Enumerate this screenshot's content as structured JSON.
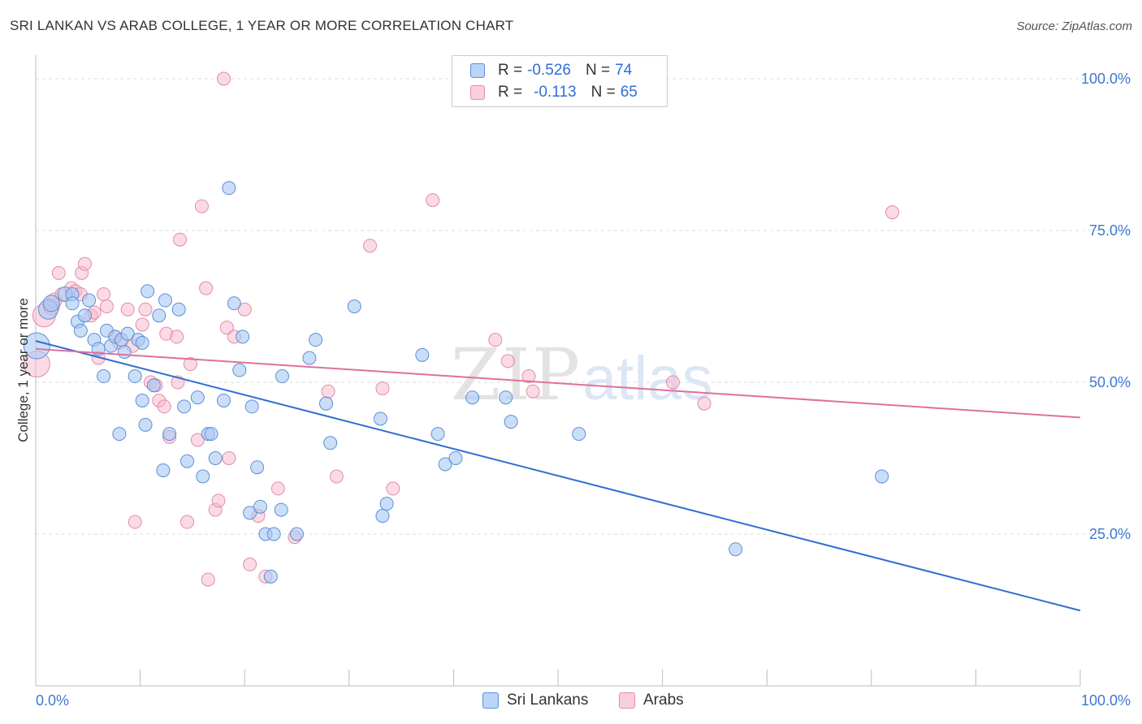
{
  "header": {
    "title": "SRI LANKAN VS ARAB COLLEGE, 1 YEAR OR MORE CORRELATION CHART",
    "source": "Source: ZipAtlas.com"
  },
  "watermark": {
    "zip": "ZIP",
    "atlas": "atlas"
  },
  "legend": {
    "rows": [
      {
        "r_label": "R =",
        "r_value": "-0.526",
        "n_label": "N =",
        "n_value": "74"
      },
      {
        "r_label": "R =",
        "r_value": "-0.113",
        "n_label": "N =",
        "n_value": "65"
      }
    ]
  },
  "bottom_legend": {
    "items": [
      "Sri Lankans",
      "Arabs"
    ]
  },
  "colors": {
    "blue_fill": "#a9c8f2",
    "blue_stroke": "#5b8fd9",
    "blue_line": "#2e6fd1",
    "pink_fill": "#f5b8cb",
    "pink_stroke": "#e58aa8",
    "pink_line": "#e0719a",
    "tick_label": "#3f78d0",
    "grid": "#dddddd"
  },
  "chart_data": {
    "type": "scatter",
    "title": "SRI LANKAN VS ARAB COLLEGE, 1 YEAR OR MORE CORRELATION CHART",
    "xlabel": "",
    "ylabel": "College, 1 year or more",
    "xlim": [
      0,
      100
    ],
    "ylim": [
      0,
      100
    ],
    "x_tick_labels": [
      "0.0%",
      "100.0%"
    ],
    "y_ticks": [
      25,
      50,
      75,
      100
    ],
    "y_tick_labels": [
      "25.0%",
      "50.0%",
      "75.0%",
      "100.0%"
    ],
    "grid": true,
    "series": [
      {
        "name": "Sri Lankans",
        "r": -0.526,
        "n": 74,
        "trend": {
          "x": [
            0,
            100
          ],
          "y": [
            56.8,
            12.4
          ]
        },
        "points": [
          {
            "x": 0.1,
            "y": 56,
            "s": 16
          },
          {
            "x": 1.2,
            "y": 62,
            "s": 12
          },
          {
            "x": 1.5,
            "y": 63,
            "s": 10
          },
          {
            "x": 2.8,
            "y": 64.5,
            "s": 9
          },
          {
            "x": 3.5,
            "y": 64.5,
            "s": 8
          },
          {
            "x": 3.5,
            "y": 63,
            "s": 8
          },
          {
            "x": 4,
            "y": 60,
            "s": 8
          },
          {
            "x": 4.3,
            "y": 58.5,
            "s": 8
          },
          {
            "x": 5.1,
            "y": 63.5,
            "s": 8
          },
          {
            "x": 4.7,
            "y": 61,
            "s": 8
          },
          {
            "x": 5.6,
            "y": 57,
            "s": 8
          },
          {
            "x": 6,
            "y": 55.5,
            "s": 8
          },
          {
            "x": 6.5,
            "y": 51,
            "s": 8
          },
          {
            "x": 6.8,
            "y": 58.5,
            "s": 8
          },
          {
            "x": 7.2,
            "y": 56,
            "s": 8
          },
          {
            "x": 7.6,
            "y": 57.5,
            "s": 8
          },
          {
            "x": 8.2,
            "y": 57,
            "s": 8
          },
          {
            "x": 8.5,
            "y": 55,
            "s": 8
          },
          {
            "x": 8,
            "y": 41.5,
            "s": 8
          },
          {
            "x": 8.8,
            "y": 58,
            "s": 8
          },
          {
            "x": 9.5,
            "y": 51,
            "s": 8
          },
          {
            "x": 9.8,
            "y": 57,
            "s": 8
          },
          {
            "x": 10.2,
            "y": 56.5,
            "s": 8
          },
          {
            "x": 10.2,
            "y": 47,
            "s": 8
          },
          {
            "x": 10.5,
            "y": 43,
            "s": 8
          },
          {
            "x": 10.7,
            "y": 65,
            "s": 8
          },
          {
            "x": 11.3,
            "y": 49.5,
            "s": 8
          },
          {
            "x": 11.8,
            "y": 61,
            "s": 8
          },
          {
            "x": 12.2,
            "y": 35.5,
            "s": 8
          },
          {
            "x": 12.4,
            "y": 63.5,
            "s": 8
          },
          {
            "x": 12.8,
            "y": 41.5,
            "s": 8
          },
          {
            "x": 13.7,
            "y": 62,
            "s": 8
          },
          {
            "x": 14.2,
            "y": 46,
            "s": 8
          },
          {
            "x": 14.5,
            "y": 37,
            "s": 8
          },
          {
            "x": 15.5,
            "y": 47.5,
            "s": 8
          },
          {
            "x": 16,
            "y": 34.5,
            "s": 8
          },
          {
            "x": 16.5,
            "y": 41.5,
            "s": 8
          },
          {
            "x": 16.8,
            "y": 41.5,
            "s": 8
          },
          {
            "x": 17.2,
            "y": 37.5,
            "s": 8
          },
          {
            "x": 18,
            "y": 47,
            "s": 8
          },
          {
            "x": 18.5,
            "y": 82,
            "s": 8
          },
          {
            "x": 19,
            "y": 63,
            "s": 8
          },
          {
            "x": 19.5,
            "y": 52,
            "s": 8
          },
          {
            "x": 19.8,
            "y": 57.5,
            "s": 8
          },
          {
            "x": 20.5,
            "y": 28.5,
            "s": 8
          },
          {
            "x": 20.7,
            "y": 46,
            "s": 8
          },
          {
            "x": 21.2,
            "y": 36,
            "s": 8
          },
          {
            "x": 21.5,
            "y": 29.5,
            "s": 8
          },
          {
            "x": 22,
            "y": 25,
            "s": 8
          },
          {
            "x": 22.8,
            "y": 25,
            "s": 8
          },
          {
            "x": 22.5,
            "y": 18,
            "s": 8
          },
          {
            "x": 23.6,
            "y": 51,
            "s": 8
          },
          {
            "x": 23.5,
            "y": 29,
            "s": 8
          },
          {
            "x": 25,
            "y": 25,
            "s": 8
          },
          {
            "x": 26.2,
            "y": 54,
            "s": 8
          },
          {
            "x": 26.8,
            "y": 57,
            "s": 8
          },
          {
            "x": 27.8,
            "y": 46.5,
            "s": 8
          },
          {
            "x": 28.2,
            "y": 40,
            "s": 8
          },
          {
            "x": 30.5,
            "y": 62.5,
            "s": 8
          },
          {
            "x": 33,
            "y": 44,
            "s": 8
          },
          {
            "x": 33.2,
            "y": 28,
            "s": 8
          },
          {
            "x": 33.6,
            "y": 30,
            "s": 8
          },
          {
            "x": 37,
            "y": 54.5,
            "s": 8
          },
          {
            "x": 38.5,
            "y": 41.5,
            "s": 8
          },
          {
            "x": 39.2,
            "y": 36.5,
            "s": 8
          },
          {
            "x": 40.2,
            "y": 37.5,
            "s": 8
          },
          {
            "x": 41.8,
            "y": 47.5,
            "s": 8
          },
          {
            "x": 45,
            "y": 47.5,
            "s": 8
          },
          {
            "x": 45.5,
            "y": 43.5,
            "s": 8
          },
          {
            "x": 52,
            "y": 41.5,
            "s": 8
          },
          {
            "x": 67,
            "y": 22.5,
            "s": 8
          },
          {
            "x": 81,
            "y": 34.5,
            "s": 8
          }
        ]
      },
      {
        "name": "Arabs",
        "r": -0.113,
        "n": 65,
        "trend": {
          "x": [
            0,
            100
          ],
          "y": [
            55.5,
            44.2
          ]
        },
        "points": [
          {
            "x": 0.1,
            "y": 53,
            "s": 16
          },
          {
            "x": 0.8,
            "y": 61,
            "s": 14
          },
          {
            "x": 1.5,
            "y": 62.5,
            "s": 10
          },
          {
            "x": 1.8,
            "y": 63.5,
            "s": 9
          },
          {
            "x": 2.2,
            "y": 68,
            "s": 8
          },
          {
            "x": 2.5,
            "y": 64.5,
            "s": 8
          },
          {
            "x": 3.4,
            "y": 65.5,
            "s": 8
          },
          {
            "x": 3.8,
            "y": 65,
            "s": 8
          },
          {
            "x": 4.3,
            "y": 64.5,
            "s": 8
          },
          {
            "x": 4.4,
            "y": 68,
            "s": 8
          },
          {
            "x": 4.7,
            "y": 69.5,
            "s": 8
          },
          {
            "x": 5.3,
            "y": 61,
            "s": 8
          },
          {
            "x": 5.6,
            "y": 61.5,
            "s": 8
          },
          {
            "x": 6,
            "y": 54,
            "s": 8
          },
          {
            "x": 6.5,
            "y": 64.5,
            "s": 8
          },
          {
            "x": 6.8,
            "y": 62.5,
            "s": 8
          },
          {
            "x": 7.6,
            "y": 57.5,
            "s": 8
          },
          {
            "x": 8,
            "y": 56.5,
            "s": 8
          },
          {
            "x": 8.8,
            "y": 62,
            "s": 8
          },
          {
            "x": 9.3,
            "y": 56,
            "s": 8
          },
          {
            "x": 9.5,
            "y": 27,
            "s": 8
          },
          {
            "x": 10.2,
            "y": 59.5,
            "s": 8
          },
          {
            "x": 10.5,
            "y": 62,
            "s": 8
          },
          {
            "x": 11,
            "y": 50,
            "s": 8
          },
          {
            "x": 11.5,
            "y": 49.5,
            "s": 8
          },
          {
            "x": 11.8,
            "y": 47,
            "s": 8
          },
          {
            "x": 12.3,
            "y": 46,
            "s": 8
          },
          {
            "x": 12.5,
            "y": 58,
            "s": 8
          },
          {
            "x": 12.8,
            "y": 41,
            "s": 8
          },
          {
            "x": 13.5,
            "y": 57.5,
            "s": 8
          },
          {
            "x": 13.6,
            "y": 50,
            "s": 8
          },
          {
            "x": 13.8,
            "y": 73.5,
            "s": 8
          },
          {
            "x": 14.5,
            "y": 27,
            "s": 8
          },
          {
            "x": 14.8,
            "y": 53,
            "s": 8
          },
          {
            "x": 15.5,
            "y": 40.5,
            "s": 8
          },
          {
            "x": 15.9,
            "y": 79,
            "s": 8
          },
          {
            "x": 16.3,
            "y": 65.5,
            "s": 8
          },
          {
            "x": 16.5,
            "y": 17.5,
            "s": 8
          },
          {
            "x": 17.2,
            "y": 29,
            "s": 8
          },
          {
            "x": 17.5,
            "y": 30.5,
            "s": 8
          },
          {
            "x": 18,
            "y": 100,
            "s": 8
          },
          {
            "x": 18.3,
            "y": 59,
            "s": 8
          },
          {
            "x": 18.5,
            "y": 37.5,
            "s": 8
          },
          {
            "x": 19,
            "y": 57.5,
            "s": 8
          },
          {
            "x": 20,
            "y": 62,
            "s": 8
          },
          {
            "x": 20.5,
            "y": 20,
            "s": 8
          },
          {
            "x": 21.3,
            "y": 28,
            "s": 8
          },
          {
            "x": 22,
            "y": 18,
            "s": 8
          },
          {
            "x": 23.2,
            "y": 32.5,
            "s": 8
          },
          {
            "x": 24.8,
            "y": 24.5,
            "s": 8
          },
          {
            "x": 28,
            "y": 48.5,
            "s": 8
          },
          {
            "x": 28.8,
            "y": 34.5,
            "s": 8
          },
          {
            "x": 32,
            "y": 72.5,
            "s": 8
          },
          {
            "x": 33.2,
            "y": 49,
            "s": 8
          },
          {
            "x": 34.2,
            "y": 32.5,
            "s": 8
          },
          {
            "x": 38,
            "y": 80,
            "s": 8
          },
          {
            "x": 44,
            "y": 57,
            "s": 8
          },
          {
            "x": 45.2,
            "y": 53.5,
            "s": 8
          },
          {
            "x": 47.2,
            "y": 51,
            "s": 8
          },
          {
            "x": 47.6,
            "y": 48.5,
            "s": 8
          },
          {
            "x": 61,
            "y": 50,
            "s": 8
          },
          {
            "x": 64,
            "y": 46.5,
            "s": 8
          },
          {
            "x": 82,
            "y": 78,
            "s": 8
          }
        ]
      }
    ]
  }
}
